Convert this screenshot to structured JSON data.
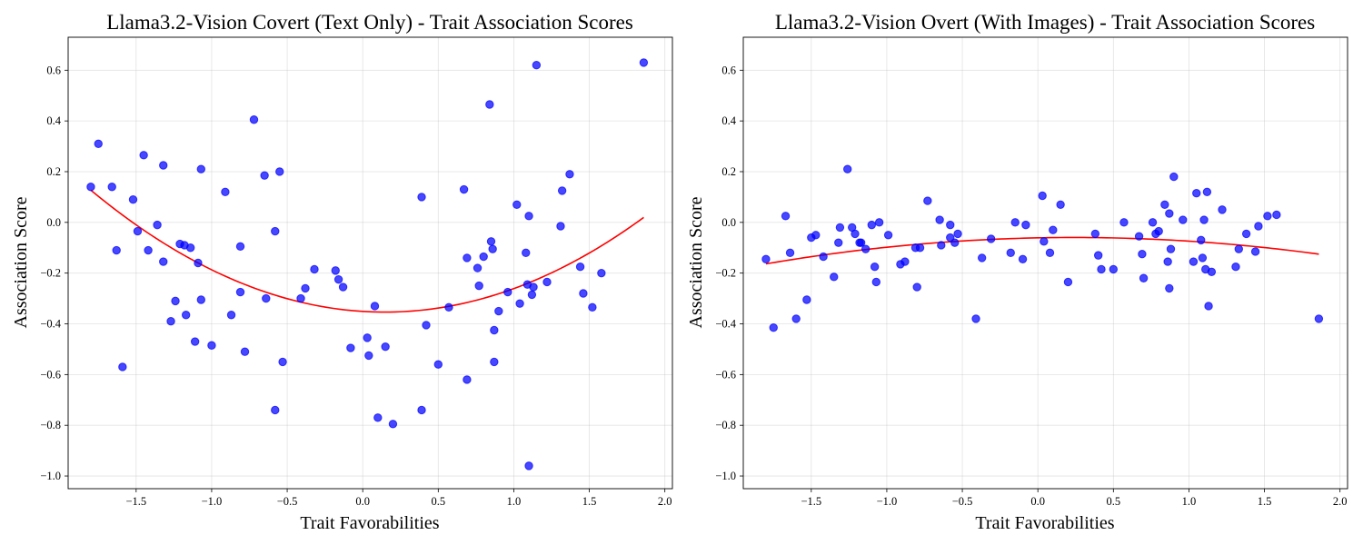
{
  "chart_data": [
    {
      "type": "scatter",
      "title": "Llama3.2-Vision Covert (Text Only) - Trait Association Scores",
      "xlabel": "Trait Favorabilities",
      "ylabel": "Association Score",
      "xlim": [
        -1.95,
        2.05
      ],
      "ylim": [
        -1.05,
        0.73
      ],
      "x_ticks": [
        -1.5,
        -1.0,
        -0.5,
        0.0,
        0.5,
        1.0,
        1.5,
        2.0
      ],
      "x_tick_labels": [
        "−1.5",
        "−1.0",
        "−0.5",
        "0.0",
        "0.5",
        "1.0",
        "1.5",
        "2.0"
      ],
      "y_ticks": [
        -1.0,
        -0.8,
        -0.6,
        -0.4,
        -0.2,
        0.0,
        0.2,
        0.4,
        0.6
      ],
      "y_tick_labels": [
        "−1.0",
        "−0.8",
        "−0.6",
        "−0.4",
        "−0.2",
        "0.0",
        "0.2",
        "0.4",
        "0.6"
      ],
      "grid": true,
      "point_color": "#0000ff",
      "fit_color": "#ff0000",
      "fit": {
        "type": "quadratic",
        "coefficients": [
          0.127,
          -0.037,
          -0.351
        ],
        "x_range": [
          -1.8,
          1.86
        ]
      },
      "points": [
        [
          -1.8,
          0.14
        ],
        [
          -1.75,
          0.31
        ],
        [
          -1.66,
          0.14
        ],
        [
          -1.63,
          -0.11
        ],
        [
          -1.59,
          -0.57
        ],
        [
          -1.52,
          0.09
        ],
        [
          -1.49,
          -0.035
        ],
        [
          -1.45,
          0.265
        ],
        [
          -1.42,
          -0.11
        ],
        [
          -1.36,
          -0.01
        ],
        [
          -1.32,
          0.225
        ],
        [
          -1.32,
          -0.155
        ],
        [
          -1.27,
          -0.39
        ],
        [
          -1.24,
          -0.31
        ],
        [
          -1.21,
          -0.085
        ],
        [
          -1.18,
          -0.09
        ],
        [
          -1.17,
          -0.365
        ],
        [
          -1.14,
          -0.1
        ],
        [
          -1.11,
          -0.47
        ],
        [
          -1.09,
          -0.16
        ],
        [
          -1.07,
          0.21
        ],
        [
          -1.07,
          -0.305
        ],
        [
          -1.0,
          -0.485
        ],
        [
          -0.91,
          0.12
        ],
        [
          -0.87,
          -0.365
        ],
        [
          -0.81,
          -0.095
        ],
        [
          -0.81,
          -0.275
        ],
        [
          -0.78,
          -0.51
        ],
        [
          -0.72,
          0.405
        ],
        [
          -0.65,
          0.185
        ],
        [
          -0.64,
          -0.3
        ],
        [
          -0.58,
          -0.035
        ],
        [
          -0.58,
          -0.74
        ],
        [
          -0.55,
          0.2
        ],
        [
          -0.53,
          -0.55
        ],
        [
          -0.41,
          -0.3
        ],
        [
          -0.38,
          -0.26
        ],
        [
          -0.32,
          -0.185
        ],
        [
          -0.18,
          -0.19
        ],
        [
          -0.16,
          -0.225
        ],
        [
          -0.13,
          -0.255
        ],
        [
          -0.08,
          -0.495
        ],
        [
          0.03,
          -0.455
        ],
        [
          0.04,
          -0.525
        ],
        [
          0.08,
          -0.33
        ],
        [
          0.1,
          -0.77
        ],
        [
          0.15,
          -0.49
        ],
        [
          0.2,
          -0.795
        ],
        [
          0.39,
          -0.74
        ],
        [
          0.39,
          0.1
        ],
        [
          0.42,
          -0.405
        ],
        [
          0.5,
          -0.56
        ],
        [
          0.57,
          -0.335
        ],
        [
          0.67,
          0.13
        ],
        [
          0.69,
          -0.14
        ],
        [
          0.69,
          -0.62
        ],
        [
          0.76,
          -0.18
        ],
        [
          0.77,
          -0.25
        ],
        [
          0.8,
          -0.135
        ],
        [
          0.84,
          0.465
        ],
        [
          0.85,
          -0.075
        ],
        [
          0.86,
          -0.105
        ],
        [
          0.87,
          -0.425
        ],
        [
          0.87,
          -0.55
        ],
        [
          0.9,
          -0.35
        ],
        [
          0.96,
          -0.275
        ],
        [
          1.02,
          0.07
        ],
        [
          1.04,
          -0.32
        ],
        [
          1.08,
          -0.12
        ],
        [
          1.09,
          -0.245
        ],
        [
          1.1,
          0.025
        ],
        [
          1.1,
          -0.96
        ],
        [
          1.12,
          -0.285
        ],
        [
          1.13,
          -0.255
        ],
        [
          1.15,
          0.62
        ],
        [
          1.22,
          -0.235
        ],
        [
          1.31,
          -0.015
        ],
        [
          1.32,
          0.125
        ],
        [
          1.37,
          0.19
        ],
        [
          1.44,
          -0.175
        ],
        [
          1.46,
          -0.28
        ],
        [
          1.52,
          -0.335
        ],
        [
          1.58,
          -0.2
        ],
        [
          1.86,
          0.63
        ]
      ]
    },
    {
      "type": "scatter",
      "title": "Llama3.2-Vision Overt (With Images) - Trait Association Scores",
      "xlabel": "Trait Favorabilities",
      "ylabel": "Association Score",
      "xlim": [
        -1.95,
        2.05
      ],
      "ylim": [
        -1.05,
        0.73
      ],
      "x_ticks": [
        -1.5,
        -1.0,
        -0.5,
        0.0,
        0.5,
        1.0,
        1.5,
        2.0
      ],
      "x_tick_labels": [
        "−1.5",
        "−1.0",
        "−0.5",
        "0.0",
        "0.5",
        "1.0",
        "1.5",
        "2.0"
      ],
      "y_ticks": [
        -1.0,
        -0.8,
        -0.6,
        -0.4,
        -0.2,
        0.0,
        0.2,
        0.4,
        0.6
      ],
      "y_tick_labels": [
        "−1.0",
        "−0.8",
        "−0.6",
        "−0.4",
        "−0.2",
        "0.0",
        "0.2",
        "0.4",
        "0.6"
      ],
      "grid": true,
      "point_color": "#0000ff",
      "fit_color": "#ff0000",
      "fit": {
        "type": "quadratic",
        "coefficients": [
          -0.025,
          0.012,
          -0.061
        ],
        "x_range": [
          -1.8,
          1.86
        ]
      },
      "points": [
        [
          -1.8,
          -0.145
        ],
        [
          -1.75,
          -0.415
        ],
        [
          -1.67,
          0.025
        ],
        [
          -1.64,
          -0.12
        ],
        [
          -1.6,
          -0.38
        ],
        [
          -1.53,
          -0.305
        ],
        [
          -1.5,
          -0.06
        ],
        [
          -1.47,
          -0.05
        ],
        [
          -1.42,
          -0.135
        ],
        [
          -1.35,
          -0.215
        ],
        [
          -1.32,
          -0.08
        ],
        [
          -1.31,
          -0.02
        ],
        [
          -1.26,
          0.21
        ],
        [
          -1.23,
          -0.02
        ],
        [
          -1.21,
          -0.045
        ],
        [
          -1.18,
          -0.08
        ],
        [
          -1.17,
          -0.08
        ],
        [
          -1.14,
          -0.105
        ],
        [
          -1.1,
          -0.01
        ],
        [
          -1.08,
          -0.175
        ],
        [
          -1.07,
          -0.235
        ],
        [
          -1.05,
          0.0
        ],
        [
          -0.99,
          -0.05
        ],
        [
          -0.91,
          -0.165
        ],
        [
          -0.88,
          -0.155
        ],
        [
          -0.81,
          -0.1
        ],
        [
          -0.8,
          -0.255
        ],
        [
          -0.78,
          -0.1
        ],
        [
          -0.73,
          0.085
        ],
        [
          -0.65,
          0.01
        ],
        [
          -0.64,
          -0.09
        ],
        [
          -0.58,
          -0.01
        ],
        [
          -0.58,
          -0.06
        ],
        [
          -0.55,
          -0.08
        ],
        [
          -0.53,
          -0.045
        ],
        [
          -0.41,
          -0.38
        ],
        [
          -0.37,
          -0.14
        ],
        [
          -0.31,
          -0.065
        ],
        [
          -0.18,
          -0.12
        ],
        [
          -0.15,
          0.0
        ],
        [
          -0.1,
          -0.145
        ],
        [
          -0.08,
          -0.01
        ],
        [
          0.03,
          0.105
        ],
        [
          0.04,
          -0.075
        ],
        [
          0.08,
          -0.12
        ],
        [
          0.1,
          -0.03
        ],
        [
          0.15,
          0.07
        ],
        [
          0.2,
          -0.235
        ],
        [
          0.38,
          -0.045
        ],
        [
          0.4,
          -0.13
        ],
        [
          0.42,
          -0.185
        ],
        [
          0.5,
          -0.185
        ],
        [
          0.57,
          0.0
        ],
        [
          0.67,
          -0.055
        ],
        [
          0.69,
          -0.125
        ],
        [
          0.7,
          -0.22
        ],
        [
          0.76,
          0.0
        ],
        [
          0.78,
          -0.045
        ],
        [
          0.8,
          -0.035
        ],
        [
          0.84,
          0.07
        ],
        [
          0.86,
          -0.155
        ],
        [
          0.87,
          -0.26
        ],
        [
          0.87,
          0.035
        ],
        [
          0.88,
          -0.105
        ],
        [
          0.9,
          0.18
        ],
        [
          0.96,
          0.01
        ],
        [
          1.03,
          -0.155
        ],
        [
          1.05,
          0.115
        ],
        [
          1.08,
          -0.07
        ],
        [
          1.09,
          -0.14
        ],
        [
          1.1,
          0.01
        ],
        [
          1.11,
          -0.185
        ],
        [
          1.12,
          0.12
        ],
        [
          1.13,
          -0.33
        ],
        [
          1.15,
          -0.195
        ],
        [
          1.22,
          0.05
        ],
        [
          1.31,
          -0.175
        ],
        [
          1.33,
          -0.105
        ],
        [
          1.38,
          -0.045
        ],
        [
          1.44,
          -0.115
        ],
        [
          1.46,
          -0.015
        ],
        [
          1.52,
          0.025
        ],
        [
          1.58,
          0.03
        ],
        [
          1.86,
          -0.38
        ]
      ]
    }
  ]
}
